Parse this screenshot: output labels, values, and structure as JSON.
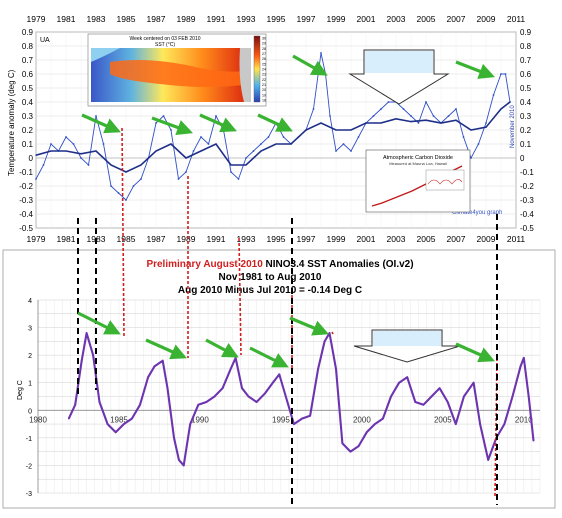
{
  "top_chart": {
    "corner_label": "UA",
    "ylabel": "Temperature anomaly (deg C)",
    "right_label": "November 2010",
    "credit": "Climate4you graph",
    "x_ticks": [
      "1979",
      "1981",
      "1983",
      "1985",
      "1987",
      "1989",
      "1991",
      "1993",
      "1995",
      "1997",
      "1999",
      "2001",
      "2003",
      "2005",
      "2007",
      "2009",
      "2011"
    ],
    "y_ticks": [
      "0.9",
      "0.8",
      "0.7",
      "0.6",
      "0.5",
      "0.4",
      "0.3",
      "0.2",
      "0.1",
      "0",
      "-0.1",
      "-0.2",
      "-0.3",
      "-0.4",
      "-0.5"
    ],
    "sst_inset": {
      "title": "Week centered on 03 FEB 2010",
      "subtitle": "SST (°C)",
      "colorbar_labels": [
        "30",
        "29",
        "28",
        "27",
        "26",
        "25",
        "24",
        "23",
        "22",
        "21",
        "20",
        "19",
        "18"
      ]
    },
    "co2_inset": {
      "title": "Atmospheric Carbon Dioxide",
      "subtitle": "Measured at Mauna Loa, Hawaii"
    }
  },
  "bottom_chart": {
    "title_red": "Preliminary August 2010",
    "title_rest": " NINO3.4 SST Anomalies (OI.v2)",
    "subtitle1": "Nov 1981 to Aug 2010",
    "subtitle2": "Aug 2010 Minus Jul 2010 = -0.14 Deg C",
    "ylabel": "Deg C",
    "x_ticks": [
      "1980",
      "1985",
      "1990",
      "1995",
      "2000",
      "2005",
      "2010"
    ],
    "y_ticks": [
      "4",
      "3",
      "2",
      "1",
      "0",
      "-1",
      "-2",
      "-3"
    ]
  },
  "chart_data": [
    {
      "type": "line",
      "title": "",
      "xlabel": "",
      "ylabel": "Temperature anomaly (deg C)",
      "xlim": [
        1979,
        2011
      ],
      "ylim": [
        -0.5,
        0.9
      ],
      "grid": true,
      "series": [
        {
          "x": [
            1979.0,
            1979.5,
            1980.0,
            1980.5,
            1981.0,
            1981.5,
            1982.0,
            1982.5,
            1983.0,
            1983.5,
            1984.0,
            1984.5,
            1985.0,
            1985.5,
            1986.0,
            1986.5,
            1987.0,
            1987.5,
            1988.0,
            1988.5,
            1989.0,
            1989.5,
            1990.0,
            1990.5,
            1991.0,
            1991.5,
            1992.0,
            1992.5,
            1993.0,
            1993.5,
            1994.0,
            1994.5,
            1995.0,
            1995.5,
            1996.0,
            1996.5,
            1997.0,
            1997.5,
            1998.0,
            1998.3,
            1998.6,
            1999.0,
            1999.5,
            2000.0,
            2000.5,
            2001.0,
            2001.5,
            2002.0,
            2002.5,
            2003.0,
            2003.5,
            2004.0,
            2004.5,
            2005.0,
            2005.5,
            2006.0,
            2006.5,
            2007.0,
            2007.5,
            2008.0,
            2008.5,
            2009.0,
            2009.5,
            2010.0,
            2010.3,
            2010.6
          ],
          "values": [
            -0.15,
            -0.05,
            0.1,
            0.05,
            0.15,
            0.1,
            0.0,
            -0.05,
            0.3,
            0.1,
            -0.2,
            -0.25,
            -0.3,
            -0.2,
            -0.15,
            0.0,
            0.25,
            0.3,
            0.2,
            -0.15,
            -0.1,
            0.05,
            0.15,
            0.1,
            0.3,
            0.2,
            -0.1,
            -0.15,
            0.0,
            0.05,
            0.1,
            0.15,
            0.25,
            0.15,
            0.1,
            0.15,
            0.2,
            0.35,
            0.75,
            0.6,
            0.3,
            0.05,
            0.1,
            0.05,
            0.15,
            0.25,
            0.3,
            0.35,
            0.4,
            0.4,
            0.35,
            0.3,
            0.25,
            0.4,
            0.3,
            0.25,
            0.3,
            0.35,
            0.15,
            0.0,
            0.1,
            0.25,
            0.45,
            0.6,
            0.6,
            0.4
          ]
        },
        {
          "x": [
            1979.0,
            1980.0,
            1981.0,
            1982.0,
            1983.0,
            1984.0,
            1985.0,
            1986.0,
            1987.0,
            1988.0,
            1989.0,
            1990.0,
            1991.0,
            1992.0,
            1993.0,
            1994.0,
            1995.0,
            1996.0,
            1997.0,
            1998.0,
            1999.0,
            2000.0,
            2001.0,
            2002.0,
            2003.0,
            2004.0,
            2005.0,
            2006.0,
            2007.0,
            2008.0,
            2009.0,
            2010.0,
            2010.6
          ],
          "values": [
            0.02,
            0.05,
            0.05,
            0.03,
            0.05,
            -0.05,
            -0.1,
            -0.05,
            0.05,
            0.1,
            0.0,
            0.05,
            0.1,
            -0.05,
            -0.05,
            0.05,
            0.1,
            0.1,
            0.2,
            0.25,
            0.2,
            0.2,
            0.25,
            0.25,
            0.28,
            0.26,
            0.27,
            0.25,
            0.27,
            0.2,
            0.22,
            0.35,
            0.4
          ]
        }
      ]
    },
    {
      "type": "line",
      "title": "Preliminary August 2010 NINO3.4 SST Anomalies (OI.v2)",
      "xlabel": "",
      "ylabel": "Deg C",
      "xlim": [
        1980,
        2011
      ],
      "ylim": [
        -3,
        4
      ],
      "grid": true,
      "series": [
        {
          "x": [
            1981.9,
            1982.3,
            1982.7,
            1983.0,
            1983.4,
            1983.8,
            1984.3,
            1984.8,
            1985.3,
            1985.8,
            1986.3,
            1986.8,
            1987.2,
            1987.7,
            1988.0,
            1988.4,
            1988.7,
            1989.0,
            1989.4,
            1989.9,
            1990.4,
            1990.9,
            1991.4,
            1991.9,
            1992.2,
            1992.6,
            1993.0,
            1993.5,
            1994.0,
            1994.5,
            1994.9,
            1995.3,
            1995.8,
            1996.3,
            1996.8,
            1997.3,
            1997.7,
            1998.0,
            1998.4,
            1998.8,
            1999.3,
            1999.8,
            2000.3,
            2000.8,
            2001.3,
            2001.8,
            2002.3,
            2002.8,
            2003.3,
            2003.8,
            2004.3,
            2004.8,
            2005.3,
            2005.8,
            2006.3,
            2006.9,
            2007.3,
            2007.8,
            2008.3,
            2008.8,
            2009.3,
            2009.8,
            2010.0,
            2010.3,
            2010.6
          ],
          "values": [
            -0.3,
            0.2,
            1.8,
            2.8,
            2.0,
            0.3,
            -0.5,
            -0.8,
            -0.5,
            -0.3,
            0.2,
            1.2,
            1.6,
            1.8,
            0.8,
            -1.0,
            -1.8,
            -2.0,
            -0.5,
            0.2,
            0.3,
            0.5,
            0.8,
            1.5,
            1.9,
            0.8,
            0.5,
            0.3,
            0.6,
            1.0,
            1.3,
            0.5,
            -0.5,
            -0.3,
            -0.2,
            1.5,
            2.5,
            2.8,
            1.5,
            -1.2,
            -1.5,
            -1.3,
            -0.8,
            -0.5,
            -0.3,
            0.5,
            1.0,
            1.2,
            0.3,
            0.2,
            0.5,
            0.8,
            0.3,
            -0.5,
            0.5,
            1.0,
            -0.5,
            -1.8,
            -1.0,
            -0.5,
            0.5,
            1.6,
            1.9,
            0.5,
            -1.1
          ]
        }
      ]
    }
  ]
}
